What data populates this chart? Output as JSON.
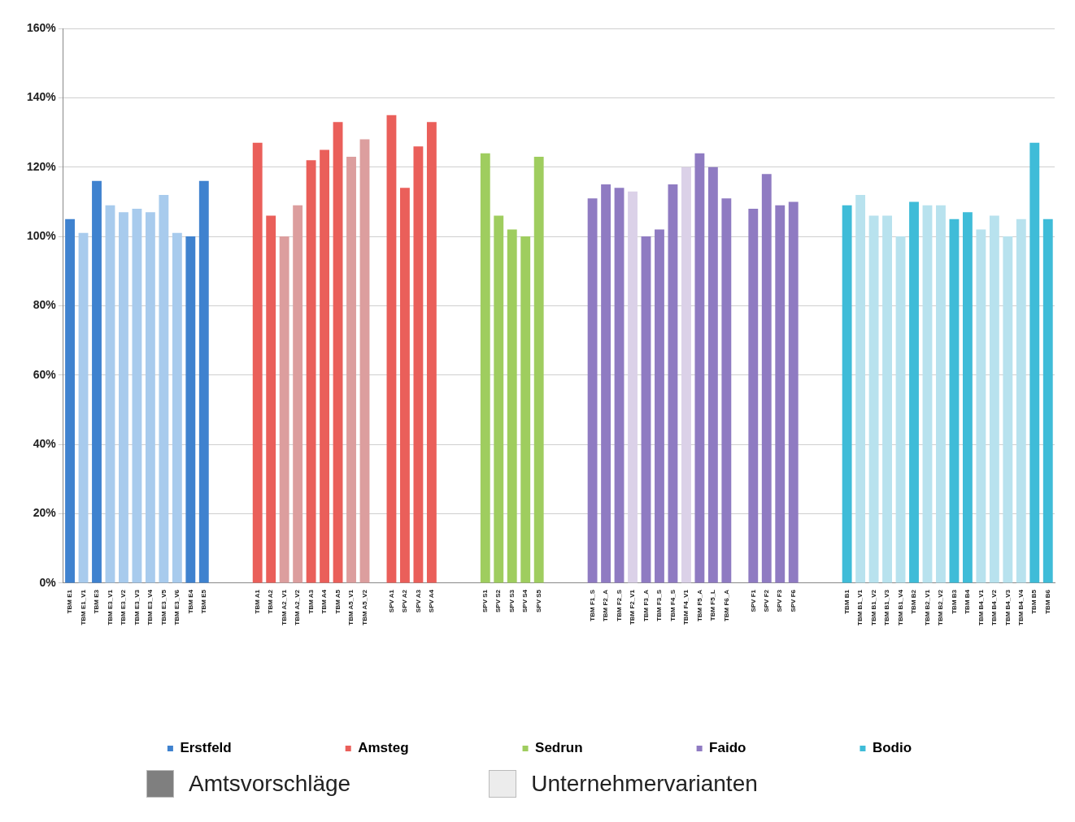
{
  "chart_data": {
    "type": "bar",
    "categories": [
      "TBM E1",
      "TBM E1_V1",
      "TBM E3",
      "TBM E3_V1",
      "TBM E3_V2",
      "TBM E3_V3",
      "TBM E3_V4",
      "TBM E3_V5",
      "TBM E3_V6",
      "TBM E4",
      "TBM E5",
      null,
      null,
      null,
      "TBM A1",
      "TBM A2",
      "TBM A2_V1",
      "TBM A2_V2",
      "TBM A3",
      "TBM A4",
      "TBM A5",
      "TBM A5_V1",
      "TBM A5_V2",
      null,
      "SPV A1",
      "SPV A2",
      "SPV A3",
      "SPV A4",
      null,
      null,
      null,
      "SPV S1",
      "SPV S2",
      "SPV S3",
      "SPV S4",
      "SPV S5",
      null,
      null,
      null,
      "TBM F1_S",
      "TBM F2_A",
      "TBM F2_S",
      "TBM F2_V1",
      "TBM F3_A",
      "TBM F3_S",
      "TBM F4_S",
      "TBM F4_V1",
      "TBM F5_A",
      "TBM F5_L",
      "TBM F6_A",
      null,
      "SPV F1",
      "SPV F2",
      "SPV F3",
      "SPV F6",
      null,
      null,
      null,
      "TBM B1",
      "TBM B1_V1",
      "TBM B1_V2",
      "TBM B1_V3",
      "TBM B1_V4",
      "TBM B2",
      "TBM B2_V1",
      "TBM B2_V2",
      "TBM B3",
      "TBM B4",
      "TBM B4_V1",
      "TBM B4_V2",
      "TBM B4_V3",
      "TBM B4_V4",
      "TBM B5",
      "TBM B6"
    ],
    "series": [
      {
        "name": "Erstfeld",
        "color": "#3f82cf",
        "values": [
          105,
          101,
          116,
          109,
          107,
          108,
          107,
          112,
          101,
          100,
          116,
          null,
          null,
          null,
          null,
          null,
          null,
          null,
          null,
          null,
          null,
          null,
          null,
          null,
          null,
          null,
          null,
          null,
          null,
          null,
          null,
          null,
          null,
          null,
          null,
          null,
          null,
          null,
          null,
          null,
          null,
          null,
          null,
          null,
          null,
          null,
          null,
          null,
          null,
          null,
          null,
          null,
          null,
          null,
          null,
          null,
          null,
          null,
          null,
          null,
          null,
          null,
          null,
          null,
          null,
          null,
          null,
          null,
          null,
          null,
          null,
          null,
          null,
          null
        ],
        "colors": [
          "#3f82cf",
          "#a8cbed",
          "#3f82cf",
          "#a8cbed",
          "#a8cbed",
          "#a8cbed",
          "#a8cbed",
          "#a8cbed",
          "#a8cbed",
          "#3f82cf",
          "#3f82cf",
          null,
          null,
          null,
          null,
          null,
          null,
          null,
          null,
          null,
          null,
          null,
          null,
          null,
          null,
          null,
          null,
          null,
          null,
          null,
          null,
          null,
          null,
          null,
          null,
          null,
          null,
          null,
          null,
          null,
          null,
          null,
          null,
          null,
          null,
          null,
          null,
          null,
          null,
          null,
          null,
          null,
          null,
          null,
          null,
          null,
          null,
          null,
          null,
          null,
          null,
          null,
          null,
          null,
          null,
          null,
          null,
          null,
          null,
          null,
          null,
          null,
          null,
          null
        ]
      },
      {
        "name": "Amsteg",
        "color": "#ea5f5a",
        "values": [
          null,
          null,
          null,
          null,
          null,
          null,
          null,
          null,
          null,
          null,
          null,
          null,
          null,
          null,
          127,
          106,
          100,
          109,
          122,
          125,
          133,
          123,
          128,
          null,
          135,
          114,
          126,
          133,
          null,
          null,
          null,
          null,
          null,
          null,
          null,
          null,
          null,
          null,
          null,
          null,
          null,
          null,
          null,
          null,
          null,
          null,
          null,
          null,
          null,
          null,
          null,
          null,
          null,
          null,
          null,
          null,
          null,
          null,
          null,
          null,
          null,
          null,
          null,
          null,
          null,
          null,
          null,
          null,
          null,
          null,
          null,
          null,
          null,
          null
        ],
        "colors": [
          null,
          null,
          null,
          null,
          null,
          null,
          null,
          null,
          null,
          null,
          null,
          null,
          null,
          null,
          "#ea5f5a",
          "#ea5f5a",
          "#dc9e9e",
          "#dc9e9e",
          "#ea5f5a",
          "#ea5f5a",
          "#ea5f5a",
          "#dc9e9e",
          "#dc9e9e",
          null,
          "#ea5f5a",
          "#ea5f5a",
          "#ea5f5a",
          "#ea5f5a",
          null,
          null,
          null,
          null,
          null,
          null,
          null,
          null,
          null,
          null,
          null,
          null,
          null,
          null,
          null,
          null,
          null,
          null,
          null,
          null,
          null,
          null,
          null,
          null,
          null,
          null,
          null,
          null,
          null,
          null,
          null,
          null,
          null,
          null,
          null,
          null,
          null,
          null,
          null,
          null,
          null,
          null,
          null,
          null,
          null,
          null
        ]
      },
      {
        "name": "Sedrun",
        "color": "#9fcd5f",
        "values": [
          null,
          null,
          null,
          null,
          null,
          null,
          null,
          null,
          null,
          null,
          null,
          null,
          null,
          null,
          null,
          null,
          null,
          null,
          null,
          null,
          null,
          null,
          null,
          null,
          null,
          null,
          null,
          null,
          null,
          null,
          null,
          124,
          106,
          102,
          100,
          123,
          null,
          null,
          null,
          null,
          null,
          null,
          null,
          null,
          null,
          null,
          null,
          null,
          null,
          null,
          null,
          null,
          null,
          null,
          null,
          null,
          null,
          null,
          null,
          null,
          null,
          null,
          null,
          null,
          null,
          null,
          null,
          null,
          null,
          null,
          null,
          null,
          null,
          null
        ],
        "colors": [
          null,
          null,
          null,
          null,
          null,
          null,
          null,
          null,
          null,
          null,
          null,
          null,
          null,
          null,
          null,
          null,
          null,
          null,
          null,
          null,
          null,
          null,
          null,
          null,
          null,
          null,
          null,
          null,
          null,
          null,
          null,
          "#9fcd5f",
          "#9fcd5f",
          "#9fcd5f",
          "#9fcd5f",
          "#9fcd5f",
          null,
          null,
          null,
          null,
          null,
          null,
          null,
          null,
          null,
          null,
          null,
          null,
          null,
          null,
          null,
          null,
          null,
          null,
          null,
          null,
          null,
          null,
          null,
          null,
          null,
          null,
          null,
          null,
          null,
          null,
          null,
          null,
          null,
          null,
          null,
          null,
          null,
          null
        ]
      },
      {
        "name": "Faido",
        "color": "#8f7bc2",
        "values": [
          null,
          null,
          null,
          null,
          null,
          null,
          null,
          null,
          null,
          null,
          null,
          null,
          null,
          null,
          null,
          null,
          null,
          null,
          null,
          null,
          null,
          null,
          null,
          null,
          null,
          null,
          null,
          null,
          null,
          null,
          null,
          null,
          null,
          null,
          null,
          null,
          null,
          null,
          null,
          111,
          115,
          114,
          113,
          100,
          102,
          115,
          120,
          124,
          120,
          111,
          null,
          108,
          118,
          109,
          110,
          null,
          null,
          null,
          null,
          null,
          null,
          null,
          null,
          null,
          null,
          null,
          null,
          null,
          null,
          null,
          null,
          null,
          null,
          null
        ],
        "colors": [
          null,
          null,
          null,
          null,
          null,
          null,
          null,
          null,
          null,
          null,
          null,
          null,
          null,
          null,
          null,
          null,
          null,
          null,
          null,
          null,
          null,
          null,
          null,
          null,
          null,
          null,
          null,
          null,
          null,
          null,
          null,
          null,
          null,
          null,
          null,
          null,
          null,
          null,
          null,
          "#8f7bc2",
          "#8f7bc2",
          "#8f7bc2",
          "#dbd1e8",
          "#8f7bc2",
          "#8f7bc2",
          "#8f7bc2",
          "#dbd1e8",
          "#8f7bc2",
          "#8f7bc2",
          "#8f7bc2",
          null,
          "#8f7bc2",
          "#8f7bc2",
          "#8f7bc2",
          "#8f7bc2",
          null,
          null,
          null,
          null,
          null,
          null,
          null,
          null,
          null,
          null,
          null,
          null,
          null,
          null,
          null,
          null,
          null,
          null,
          null
        ]
      },
      {
        "name": "Bodio",
        "color": "#3fbcd8",
        "values": [
          null,
          null,
          null,
          null,
          null,
          null,
          null,
          null,
          null,
          null,
          null,
          null,
          null,
          null,
          null,
          null,
          null,
          null,
          null,
          null,
          null,
          null,
          null,
          null,
          null,
          null,
          null,
          null,
          null,
          null,
          null,
          null,
          null,
          null,
          null,
          null,
          null,
          null,
          null,
          null,
          null,
          null,
          null,
          null,
          null,
          null,
          null,
          null,
          null,
          null,
          null,
          null,
          null,
          null,
          null,
          null,
          null,
          null,
          109,
          112,
          106,
          106,
          100,
          110,
          109,
          109,
          105,
          107,
          102,
          106,
          100,
          105,
          127,
          105
        ],
        "colors": [
          null,
          null,
          null,
          null,
          null,
          null,
          null,
          null,
          null,
          null,
          null,
          null,
          null,
          null,
          null,
          null,
          null,
          null,
          null,
          null,
          null,
          null,
          null,
          null,
          null,
          null,
          null,
          null,
          null,
          null,
          null,
          null,
          null,
          null,
          null,
          null,
          null,
          null,
          null,
          null,
          null,
          null,
          null,
          null,
          null,
          null,
          null,
          null,
          null,
          null,
          null,
          null,
          null,
          null,
          null,
          null,
          null,
          null,
          "#3fbcd8",
          "#b8e2ee",
          "#b8e2ee",
          "#b8e2ee",
          "#b8e2ee",
          "#3fbcd8",
          "#b8e2ee",
          "#b8e2ee",
          "#3fbcd8",
          "#3fbcd8",
          "#b8e2ee",
          "#b8e2ee",
          "#b8e2ee",
          "#b8e2ee",
          "#3fbcd8",
          "#3fbcd8"
        ]
      }
    ],
    "ylim": [
      0,
      160
    ],
    "yticks": [
      {
        "value": 0,
        "label": "0%"
      },
      {
        "value": 20,
        "label": "20%"
      },
      {
        "value": 40,
        "label": "40%"
      },
      {
        "value": 60,
        "label": "60%"
      },
      {
        "value": 80,
        "label": "80%"
      },
      {
        "value": 100,
        "label": "100%"
      },
      {
        "value": 120,
        "label": "120%"
      },
      {
        "value": 140,
        "label": "140%"
      },
      {
        "value": 160,
        "label": "160%"
      }
    ],
    "grid": "y",
    "legend": "bottom",
    "annotations": [
      "Amtsvorschläge",
      "Unternehmervarianten"
    ]
  }
}
